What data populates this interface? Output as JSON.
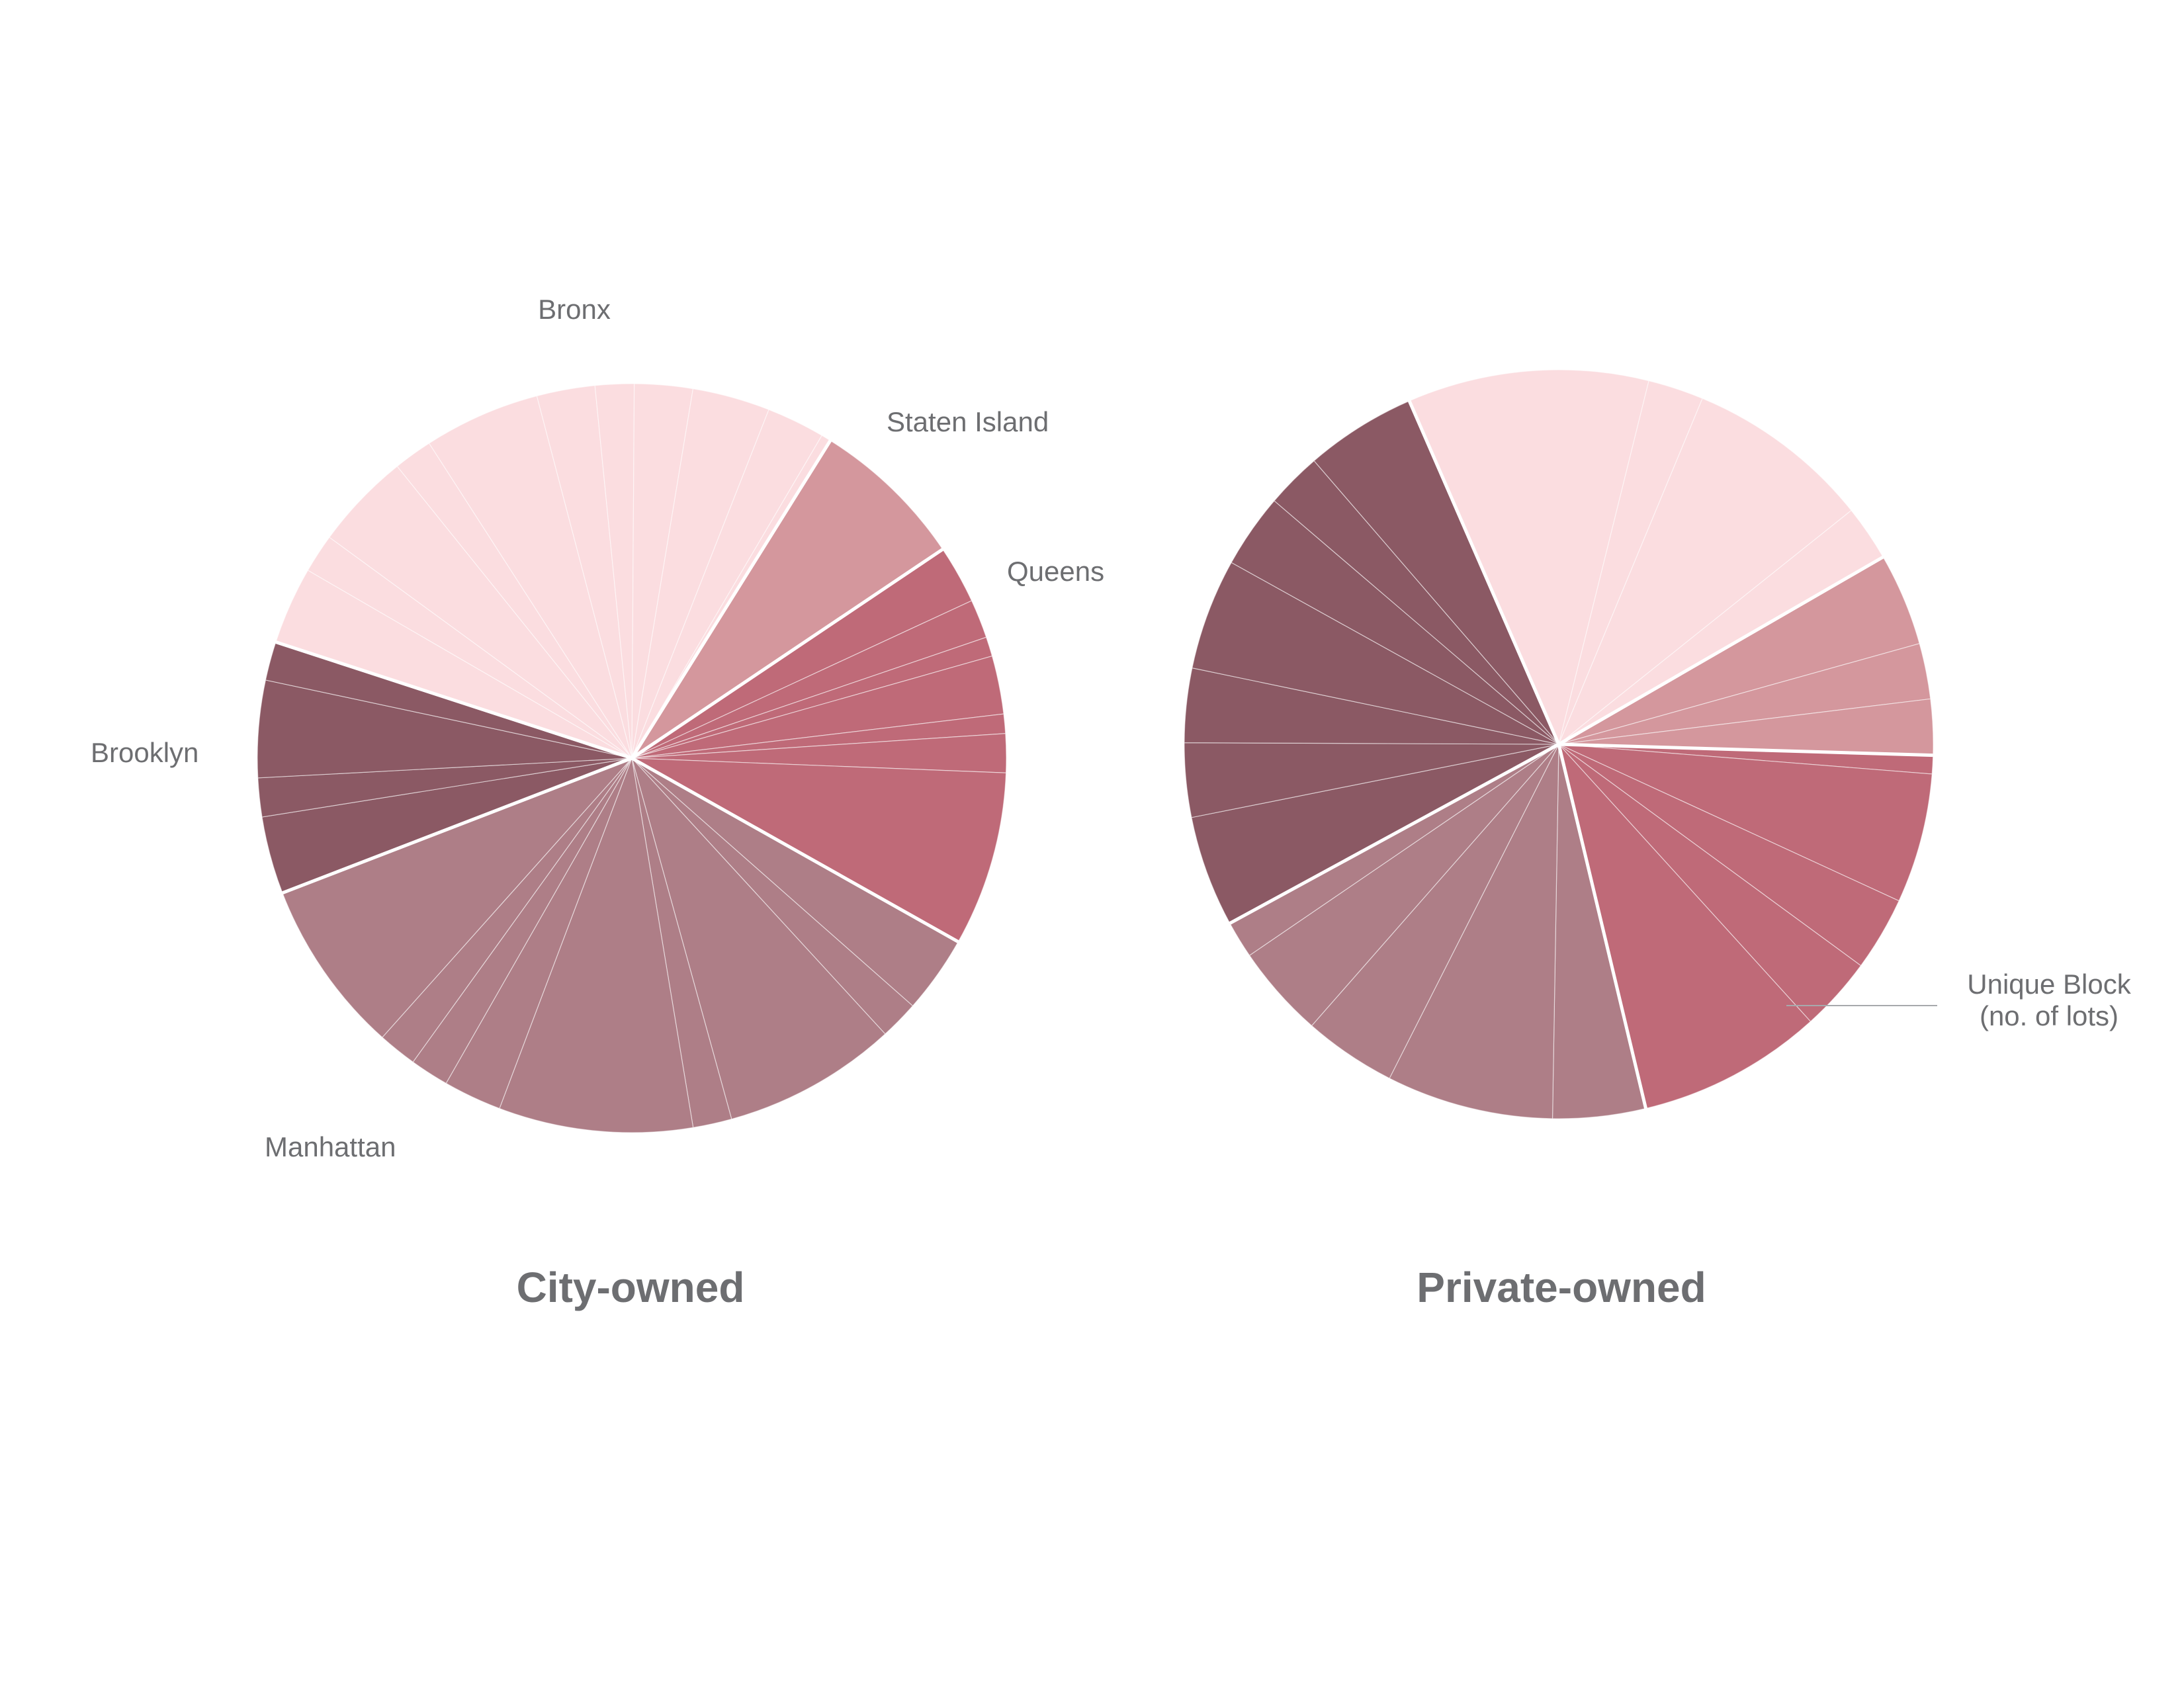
{
  "colors": {
    "Bronx": "#fbdde0",
    "Staten Island": "#d4979d",
    "Queens": "#bf6a78",
    "Manhattan": "#ae7e87",
    "Brooklyn": "#8b5964",
    "wedge_divider": "#ffffff",
    "label_text": "#6d6e71"
  },
  "borough_labels": {
    "bronx": "Bronx",
    "staten_island": "Staten Island",
    "queens": "Queens",
    "brooklyn": "Brooklyn",
    "manhattan": "Manhattan"
  },
  "legend": {
    "line1": "Unique Block",
    "line2": "(no. of lots)"
  },
  "chart_data": [
    {
      "type": "pie",
      "title": "City-owned",
      "start_angle_deg": 32,
      "direction": "clockwise",
      "groups": [
        {
          "name": "Staten Island",
          "values": [
            8
          ]
        },
        {
          "name": "Queens",
          "values": [
            3,
            2,
            1,
            3,
            1,
            2,
            9
          ]
        },
        {
          "name": "Manhattan",
          "values": [
            4,
            2,
            9,
            2,
            10,
            3,
            2,
            2,
            9
          ]
        },
        {
          "name": "Brooklyn",
          "values": [
            4,
            2,
            5,
            2
          ]
        },
        {
          "name": "Bronx",
          "values": [
            4,
            2,
            5,
            2,
            6,
            3,
            2,
            3,
            4,
            3,
            0.5
          ]
        }
      ]
    },
    {
      "type": "pie",
      "title": "Private-owned",
      "start_angle_deg": 60,
      "direction": "clockwise",
      "groups": [
        {
          "name": "Staten Island",
          "values": [
            5,
            3,
            3
          ]
        },
        {
          "name": "Queens",
          "values": [
            1,
            7,
            4,
            4,
            10
          ]
        },
        {
          "name": "Manhattan",
          "values": [
            5,
            9,
            5,
            5,
            2
          ]
        },
        {
          "name": "Brooklyn",
          "values": [
            6,
            4,
            4,
            6,
            4,
            3,
            6
          ]
        },
        {
          "name": "Bronx",
          "values": [
            13,
            3,
            10,
            3
          ]
        }
      ]
    }
  ]
}
